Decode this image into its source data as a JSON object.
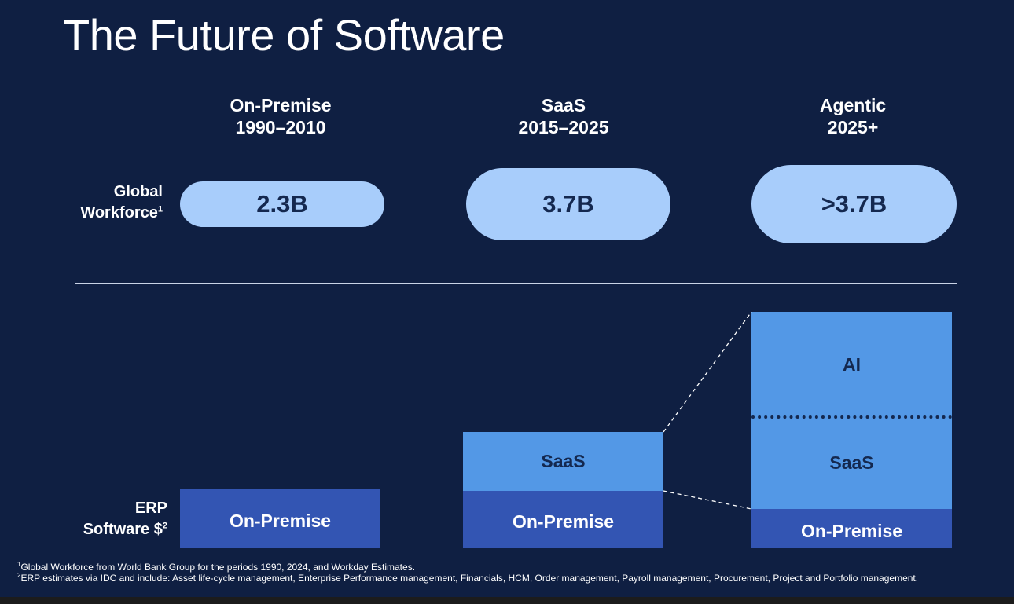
{
  "title": "The Future of Software",
  "eras": [
    {
      "name": "On-Premise",
      "years": "1990–2010"
    },
    {
      "name": "SaaS",
      "years": "2015–2025"
    },
    {
      "name": "Agentic",
      "years": "2025+"
    }
  ],
  "workforce": {
    "label_line1": "Global",
    "label_line2": "Workforce",
    "footnote_ref": "1",
    "values": [
      "2.3B",
      "3.7B",
      ">3.7B"
    ]
  },
  "erp": {
    "label_line1": "ERP",
    "label_line2": "Software $",
    "footnote_ref": "2",
    "segments": {
      "on_premise": "On-Premise",
      "saas": "SaaS",
      "ai": "AI"
    }
  },
  "footnotes": [
    {
      "ref": "1",
      "text": "Global Workforce from World Bank Group for the periods 1990, 2024, and Workday Estimates."
    },
    {
      "ref": "2",
      "text": "ERP estimates via IDC and include: Asset life-cycle management, Enterprise Performance management, Financials, HCM, Order management, Payroll management, Procurement, Project and Portfolio management."
    }
  ],
  "colors": {
    "background": "#0f1f42",
    "pill": "#a8cdfb",
    "on_premise": "#3355b3",
    "saas": "#5398e6",
    "ai": "#5398e6",
    "dark_text": "#14284f"
  }
}
